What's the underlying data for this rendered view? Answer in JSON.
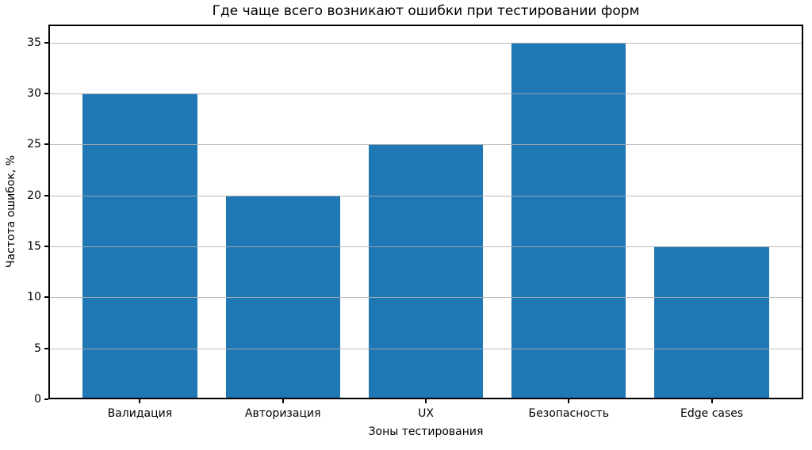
{
  "chart_data": {
    "type": "bar",
    "title": "Где чаще всего возникают ошибки при тестировании форм",
    "xlabel": "Зоны тестирования",
    "ylabel": "Частота ошибок, %",
    "categories": [
      "Валидация",
      "Авторизация",
      "UX",
      "Безопасность",
      "Edge cases"
    ],
    "values": [
      30,
      20,
      25,
      35,
      15
    ],
    "yticks": [
      0,
      5,
      10,
      15,
      20,
      25,
      30,
      35
    ],
    "ylim": [
      0,
      36.75
    ],
    "bar_color": "#1f77b4",
    "grid_color": "#b0b0b0",
    "grid": "horizontal gridlines at y ticks, drawn above bars",
    "legend_position": "none",
    "background_color": "#ffffff",
    "spine_color": "#000000"
  }
}
